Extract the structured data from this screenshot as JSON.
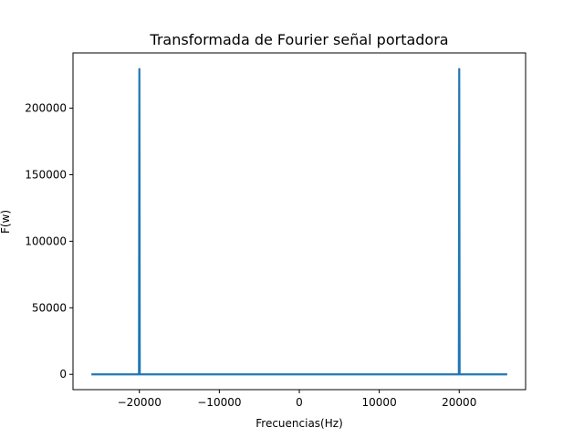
{
  "chart_data": {
    "type": "line",
    "title": "Transformada de Fourier señal portadora",
    "xlabel": "Frecuencias(Hz)",
    "ylabel": "F(w)",
    "xlim": [
      -28300,
      28300
    ],
    "ylim": [
      -11500,
      241500
    ],
    "xticks": [
      -20000,
      -10000,
      0,
      10000,
      20000
    ],
    "xtick_labels": [
      "−20000",
      "−10000",
      "0",
      "10000",
      "20000"
    ],
    "yticks": [
      0,
      50000,
      100000,
      150000,
      200000
    ],
    "ytick_labels": [
      "0",
      "50000",
      "100000",
      "150000",
      "200000"
    ],
    "grid": false,
    "legend": "none",
    "line_color": "#1f77b4",
    "series": [
      {
        "x": [
          -26000,
          -20050,
          -20000,
          -19950,
          19950,
          20000,
          20050,
          26000
        ],
        "y": [
          0,
          0,
          230000,
          0,
          0,
          230000,
          0,
          0
        ]
      }
    ]
  }
}
